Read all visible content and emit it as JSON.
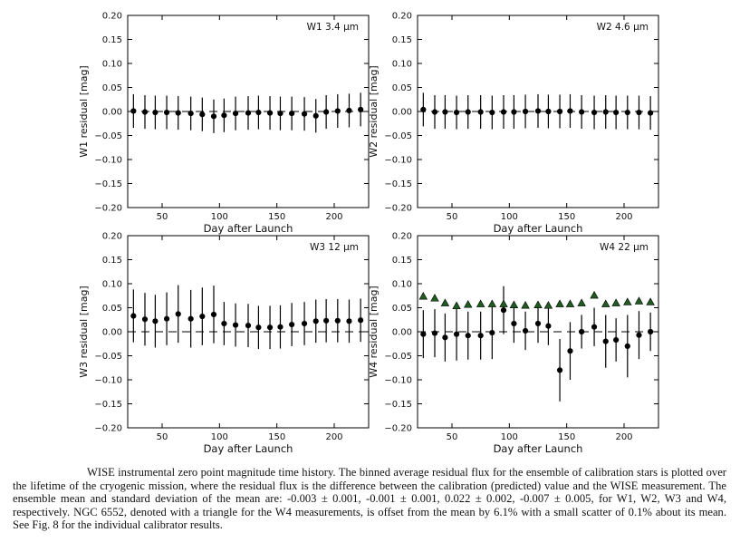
{
  "chart_data": [
    {
      "type": "scatter",
      "title": "W1 3.4 μm",
      "band": "W1",
      "xlabel": "Day after Launch",
      "ylabel": "W1 residual [mag]",
      "xlim": [
        20,
        230
      ],
      "ylim": [
        -0.2,
        0.2
      ],
      "xticks": [
        50,
        100,
        150,
        200
      ],
      "yticks": [
        -0.2,
        -0.15,
        -0.1,
        -0.05,
        0.0,
        0.05,
        0.1,
        0.15,
        0.2
      ],
      "ytick_labels": [
        "−0.20",
        "−0.15",
        "−0.10",
        "−0.05",
        "0.00",
        "0.05",
        "0.10",
        "0.15",
        "0.20"
      ],
      "show_xlabel": true,
      "zero_line": true,
      "series": [
        {
          "name": "ensemble residual",
          "marker": "circle",
          "color": "#000000",
          "x": [
            25,
            35,
            44,
            54,
            64,
            75,
            85,
            95,
            104,
            114,
            125,
            134,
            144,
            153,
            163,
            174,
            184,
            193,
            203,
            213,
            223
          ],
          "y": [
            0.001,
            -0.001,
            -0.002,
            -0.002,
            -0.003,
            -0.004,
            -0.006,
            -0.01,
            -0.008,
            -0.004,
            -0.003,
            -0.002,
            -0.003,
            -0.004,
            -0.004,
            -0.005,
            -0.009,
            -0.001,
            0.001,
            0.002,
            0.004
          ],
          "err": [
            0.035,
            0.035,
            0.035,
            0.035,
            0.035,
            0.035,
            0.035,
            0.035,
            0.035,
            0.035,
            0.035,
            0.035,
            0.035,
            0.035,
            0.035,
            0.035,
            0.035,
            0.035,
            0.035,
            0.035,
            0.035
          ]
        }
      ]
    },
    {
      "type": "scatter",
      "title": "W2 4.6 μm",
      "band": "W2",
      "xlabel": "Day after Launch",
      "ylabel": "W2 residual [mag]",
      "xlim": [
        20,
        230
      ],
      "ylim": [
        -0.2,
        0.2
      ],
      "xticks": [
        50,
        100,
        150,
        200
      ],
      "yticks": [
        -0.2,
        -0.15,
        -0.1,
        -0.05,
        0.0,
        0.05,
        0.1,
        0.15,
        0.2
      ],
      "ytick_labels": [
        "−0.20",
        "−0.15",
        "−0.10",
        "−0.05",
        "0.00",
        "0.05",
        "0.10",
        "0.15",
        "0.20"
      ],
      "show_xlabel": true,
      "zero_line": true,
      "series": [
        {
          "name": "ensemble residual",
          "marker": "circle",
          "color": "#000000",
          "x": [
            25,
            35,
            44,
            54,
            64,
            75,
            85,
            95,
            104,
            114,
            125,
            134,
            144,
            153,
            163,
            174,
            184,
            193,
            203,
            213,
            223
          ],
          "y": [
            0.004,
            -0.001,
            -0.001,
            -0.002,
            -0.001,
            -0.001,
            -0.002,
            -0.001,
            -0.001,
            0.0,
            0.001,
            0.0,
            0.0,
            0.001,
            -0.001,
            -0.002,
            -0.001,
            -0.002,
            -0.002,
            -0.002,
            -0.003
          ],
          "err": [
            0.035,
            0.035,
            0.035,
            0.035,
            0.035,
            0.035,
            0.035,
            0.035,
            0.035,
            0.035,
            0.035,
            0.035,
            0.035,
            0.035,
            0.035,
            0.035,
            0.035,
            0.035,
            0.035,
            0.035,
            0.035
          ]
        }
      ]
    },
    {
      "type": "scatter",
      "title": "W3 12 μm",
      "band": "W3",
      "xlabel": "Day after Launch",
      "ylabel": "W3 residual [mag]",
      "xlim": [
        20,
        230
      ],
      "ylim": [
        -0.2,
        0.2
      ],
      "xticks": [
        50,
        100,
        150,
        200
      ],
      "yticks": [
        -0.2,
        -0.15,
        -0.1,
        -0.05,
        0.0,
        0.05,
        0.1,
        0.15,
        0.2
      ],
      "ytick_labels": [
        "−0.20",
        "−0.15",
        "−0.10",
        "−0.05",
        "0.00",
        "0.05",
        "0.10",
        "0.15",
        "0.20"
      ],
      "show_xlabel": true,
      "zero_line": true,
      "series": [
        {
          "name": "ensemble residual",
          "marker": "circle",
          "color": "#000000",
          "x": [
            25,
            35,
            44,
            54,
            64,
            75,
            85,
            95,
            104,
            114,
            125,
            134,
            144,
            153,
            163,
            174,
            184,
            193,
            203,
            213,
            223
          ],
          "y": [
            0.033,
            0.026,
            0.022,
            0.027,
            0.037,
            0.027,
            0.032,
            0.036,
            0.017,
            0.014,
            0.013,
            0.009,
            0.009,
            0.01,
            0.015,
            0.017,
            0.022,
            0.023,
            0.023,
            0.022,
            0.024
          ],
          "err": [
            0.055,
            0.055,
            0.055,
            0.055,
            0.06,
            0.06,
            0.06,
            0.06,
            0.045,
            0.045,
            0.045,
            0.045,
            0.045,
            0.045,
            0.045,
            0.045,
            0.045,
            0.045,
            0.045,
            0.045,
            0.045
          ]
        }
      ]
    },
    {
      "type": "scatter",
      "title": "W4 22 μm",
      "band": "W4",
      "xlabel": "Day after Launch",
      "ylabel": "W4 residual [mag]",
      "xlim": [
        20,
        230
      ],
      "ylim": [
        -0.2,
        0.2
      ],
      "xticks": [
        50,
        100,
        150,
        200
      ],
      "yticks": [
        -0.2,
        -0.15,
        -0.1,
        -0.05,
        0.0,
        0.05,
        0.1,
        0.15,
        0.2
      ],
      "ytick_labels": [
        "−0.20",
        "−0.15",
        "−0.10",
        "−0.05",
        "0.00",
        "0.05",
        "0.10",
        "0.15",
        "0.20"
      ],
      "show_xlabel": true,
      "zero_line": true,
      "series": [
        {
          "name": "ensemble residual",
          "marker": "circle",
          "color": "#000000",
          "x": [
            25,
            35,
            44,
            54,
            64,
            75,
            85,
            95,
            104,
            114,
            125,
            134,
            144,
            153,
            163,
            174,
            184,
            193,
            203,
            213,
            223
          ],
          "y": [
            -0.005,
            -0.003,
            -0.012,
            -0.005,
            -0.008,
            -0.008,
            -0.002,
            0.045,
            0.017,
            0.002,
            0.017,
            0.012,
            -0.08,
            -0.04,
            0.0,
            0.01,
            -0.02,
            -0.017,
            -0.03,
            -0.007,
            0.0
          ],
          "err": [
            0.05,
            0.05,
            0.05,
            0.055,
            0.05,
            0.05,
            0.055,
            0.05,
            0.04,
            0.04,
            0.04,
            0.04,
            0.065,
            0.06,
            0.035,
            0.04,
            0.055,
            0.045,
            0.065,
            0.05,
            0.04
          ]
        },
        {
          "name": "NGC 6552",
          "marker": "triangle",
          "color": "#1e5c20",
          "x": [
            25,
            35,
            44,
            54,
            64,
            75,
            85,
            95,
            104,
            114,
            125,
            134,
            144,
            153,
            163,
            174,
            184,
            193,
            203,
            213,
            223
          ],
          "y": [
            0.074,
            0.07,
            0.06,
            0.054,
            0.057,
            0.058,
            0.058,
            0.058,
            0.056,
            0.055,
            0.056,
            0.055,
            0.058,
            0.058,
            0.06,
            0.076,
            0.058,
            0.06,
            0.062,
            0.064,
            0.062
          ],
          "err": [
            0.006,
            0.006,
            0.006,
            0.006,
            0.006,
            0.006,
            0.006,
            0.006,
            0.006,
            0.006,
            0.006,
            0.006,
            0.006,
            0.006,
            0.006,
            0.006,
            0.006,
            0.006,
            0.006,
            0.006,
            0.006
          ]
        }
      ]
    }
  ],
  "caption": "WISE instrumental zero point magnitude time history.  The binned average residual flux for the ensemble of calibration stars is plotted over the lifetime of the cryogenic mission, where the residual flux is the difference between the calibration (predicted) value and the WISE measurement. The ensemble mean and standard deviation of the mean are: -0.003 ± 0.001, -0.001 ± 0.001, 0.022 ± 0.002, -0.007 ± 0.005, for W1, W2, W3 and W4, respectively. NGC 6552, denoted with a triangle for the W4 measurements, is offset from the mean by 6.1% with a small scatter of 0.1% about its mean. See Fig. 8 for the individual calibrator results."
}
